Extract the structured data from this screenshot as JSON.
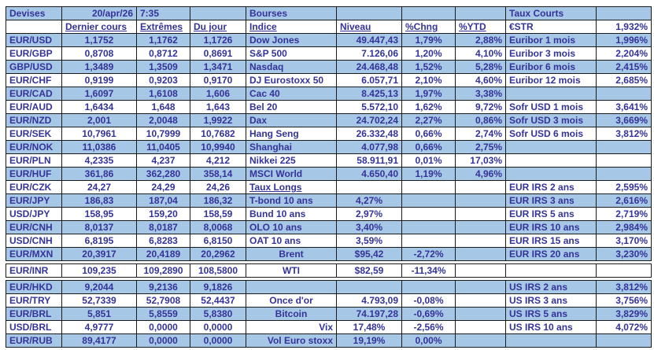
{
  "colors": {
    "band_blue": "#a7c7e7",
    "text": "#333399",
    "border": "#1a1a1a",
    "background": "#ffffff"
  },
  "header": {
    "devises": "Devises",
    "date": "20/apr/26",
    "time": "7:35",
    "bourses": "Bourses",
    "taux_courts": "Taux Courts"
  },
  "subheader": {
    "dernier_cours": "Dernier cours",
    "extremes": "Extrêmes",
    "du_jour": "Du jour",
    "indice": "Indice",
    "niveau": "Niveau",
    "chng": "%Chng",
    "ytd": "%YTD",
    "estr_label": "€STR",
    "estr_value": "1,932%"
  },
  "rows": [
    {
      "block": 1,
      "band": "blue",
      "pair": "EUR/USD",
      "last": "1,1752",
      "extremes": "1,1762",
      "day": "1,1726",
      "index": "Dow Jones",
      "level": "49.447,43",
      "chng": "1,79%",
      "ytd": "2,88%",
      "rate": "Euribor 1 mois",
      "rate_value": "1,996%"
    },
    {
      "block": 1,
      "band": "white",
      "pair": "EUR/GBP",
      "last": "0,8708",
      "extremes": "0,8712",
      "day": "0,8691",
      "index": "S&P 500",
      "level": "7.126,06",
      "chng": "1,20%",
      "ytd": "4,10%",
      "rate": "Euribor 3 mois",
      "rate_value": "2,204%"
    },
    {
      "block": 1,
      "band": "blue",
      "pair": "GBP/USD",
      "last": "1,3489",
      "extremes": "1,3509",
      "day": "1,3471",
      "index": "Nasdaq",
      "level": "24.468,48",
      "chng": "1,52%",
      "ytd": "5,28%",
      "rate": "Euribor 6 mois",
      "rate_value": "2,415%"
    },
    {
      "block": 1,
      "band": "white",
      "pair": "EUR/CHF",
      "last": "0,9199",
      "extremes": "0,9203",
      "day": "0,9170",
      "index": "DJ Eurostoxx 50",
      "level": "6.057,71",
      "chng": "2,10%",
      "ytd": "4,60%",
      "rate": "Euribor 12 mois",
      "rate_value": "2,685%"
    },
    {
      "block": 1,
      "band": "blue",
      "pair": "EUR/CAD",
      "last": "1,6097",
      "extremes": "1,6108",
      "day": "1,606",
      "index": "Cac 40",
      "level": "8.425,13",
      "chng": "1,97%",
      "ytd": "3,38%",
      "rate": "",
      "rate_value": ""
    },
    {
      "block": 1,
      "band": "white",
      "pair": "EUR/AUD",
      "last": "1,6434",
      "extremes": "1,648",
      "day": "1,643",
      "index": "Bel 20",
      "level": "5.572,10",
      "chng": "1,62%",
      "ytd": "9,72%",
      "rate": "Sofr USD 1 mois",
      "rate_value": "3,641%"
    },
    {
      "block": 1,
      "band": "blue",
      "pair": "EUR/NZD",
      "last": "2,001",
      "extremes": "2,0048",
      "day": "1,9922",
      "index": "Dax",
      "level": "24.702,24",
      "chng": "2,27%",
      "ytd": "0,86%",
      "rate": "Sofr USD 3 mois",
      "rate_value": "3,669%"
    },
    {
      "block": 1,
      "band": "white",
      "pair": "EUR/SEK",
      "last": "10,7961",
      "extremes": "10,7999",
      "day": "10,7682",
      "index": "Hang Seng",
      "level": "26.332,48",
      "chng": "0,66%",
      "ytd": "2,74%",
      "rate": "Sofr USD 6 mois",
      "rate_value": "3,812%"
    },
    {
      "block": 1,
      "band": "blue",
      "pair": "EUR/NOK",
      "last": "11,0386",
      "extremes": "11,0405",
      "day": "10,9940",
      "index": "Shanghai",
      "level": "4.077,98",
      "chng": "0,66%",
      "ytd": "2,75%",
      "rate": "",
      "rate_value": ""
    },
    {
      "block": 1,
      "band": "white",
      "pair": "EUR/PLN",
      "last": "4,2335",
      "extremes": "4,237",
      "day": "4,212",
      "index": "Nikkei 225",
      "level": "58.911,91",
      "chng": "0,01%",
      "ytd": "17,03%",
      "rate": "",
      "rate_value": ""
    },
    {
      "block": 1,
      "band": "blue",
      "pair": "EUR/HUF",
      "last": "361,86",
      "extremes": "362,280",
      "day": "358,14",
      "index": "MSCI World",
      "level": "4.650,40",
      "chng": "1,19%",
      "ytd": "4,96%",
      "rate": "",
      "rate_value": ""
    },
    {
      "block": 1,
      "band": "white",
      "pair": "EUR/CZK",
      "last": "24,27",
      "extremes": "24,29",
      "day": "24,26",
      "index": "Taux Longs",
      "index_underline": true,
      "level": "",
      "chng": "",
      "ytd": "",
      "rate": "EUR IRS 2 ans",
      "rate_value": "2,595%"
    },
    {
      "block": 1,
      "band": "blue",
      "pair": "EUR/JPY",
      "last": "186,83",
      "extremes": "187,04",
      "day": "186,32",
      "index": "T-bond 10 ans",
      "level": "4,27%",
      "level_align": "center",
      "chng": "",
      "ytd": "",
      "rate": "EUR IRS 3 ans",
      "rate_value": "2,616%"
    },
    {
      "block": 1,
      "band": "white",
      "pair": "USD/JPY",
      "last": "158,95",
      "extremes": "159,20",
      "day": "158,59",
      "index": "Bund 10 ans",
      "level": "2,97%",
      "level_align": "center",
      "chng": "",
      "ytd": "",
      "rate": "EUR IRS 5 ans",
      "rate_value": "2,719%"
    },
    {
      "block": 1,
      "band": "blue",
      "pair": "EUR/CNH",
      "last": "8,0137",
      "extremes": "8,0187",
      "day": "8,0068",
      "index": "OLO 10 ans",
      "level": "3,40%",
      "level_align": "center",
      "chng": "",
      "ytd": "",
      "rate": "EUR IRS 10 ans",
      "rate_value": "2,984%"
    },
    {
      "block": 1,
      "band": "white",
      "pair": "USD/CNH",
      "last": "6,8195",
      "extremes": "6,8283",
      "day": "6,8150",
      "index": "OAT 10 ans",
      "level": "3,59%",
      "level_align": "center",
      "chng": "",
      "ytd": "",
      "rate": "EUR IRS 15 ans",
      "rate_value": "3,170%"
    },
    {
      "block": 1,
      "band": "blue",
      "pair": "EUR/MXN",
      "last": "20,3917",
      "extremes": "20,4189",
      "day": "20,2962",
      "index": "Brent",
      "index_align": "center",
      "level": "$95,42",
      "level_align": "center",
      "chng": "-2,72%",
      "ytd": "",
      "rate": "EUR IRS 20 ans",
      "rate_value": "3,230%"
    },
    {
      "block": 2,
      "band": "white",
      "pair": "EUR/INR",
      "last": "109,235",
      "extremes": "109,2890",
      "day": "108,5800",
      "index": "WTI",
      "index_align": "center",
      "level": "$82,59",
      "level_align": "center",
      "chng": "-11,34%",
      "ytd": "",
      "rate": "",
      "rate_value": ""
    },
    {
      "block": 3,
      "band": "blue",
      "pair": "EUR/HKD",
      "last": "9,2044",
      "extremes": "9,2136",
      "day": "9,1826",
      "index": "",
      "level": "",
      "chng": "",
      "ytd": "",
      "rate": "US IRS 2 ans",
      "rate_value": "3,812%"
    },
    {
      "block": 3,
      "band": "white",
      "pair": "EUR/TRY",
      "last": "52,7339",
      "extremes": "52,7908",
      "day": "52,4437",
      "index": "Once d'or",
      "index_align": "center",
      "level": "4.793,09",
      "chng": "-0,08%",
      "ytd": "",
      "rate": "US IRS 3 ans",
      "rate_value": "3,756%"
    },
    {
      "block": 3,
      "band": "blue",
      "pair": "EUR/BRL",
      "last": "5,851",
      "extremes": "5,8559",
      "day": "5,8380",
      "index": "Bitcoin",
      "index_align": "center",
      "level": "74.197,28",
      "chng": "-0,69%",
      "ytd": "",
      "rate": "US IRS 5 ans",
      "rate_value": "3,829%"
    },
    {
      "block": 3,
      "band": "white",
      "pair": "USD/BRL",
      "last": "4,9777",
      "extremes": "0,0000",
      "day": "0,0000",
      "index": "Vix",
      "index_align": "right",
      "level": "17,48%",
      "level_align": "center",
      "chng": "-2,56%",
      "ytd": "",
      "rate": "US IRS 10 ans",
      "rate_value": "4,072%"
    },
    {
      "block": 3,
      "band": "blue",
      "pair": "EUR/RUB",
      "last": "89,4177",
      "extremes": "0,0000",
      "day": "0,0000",
      "index": "Vol Euro stoxx",
      "index_align": "right",
      "level": "19,19%",
      "level_align": "center",
      "chng": "0,00%",
      "ytd": "",
      "rate": "",
      "rate_value": ""
    }
  ]
}
